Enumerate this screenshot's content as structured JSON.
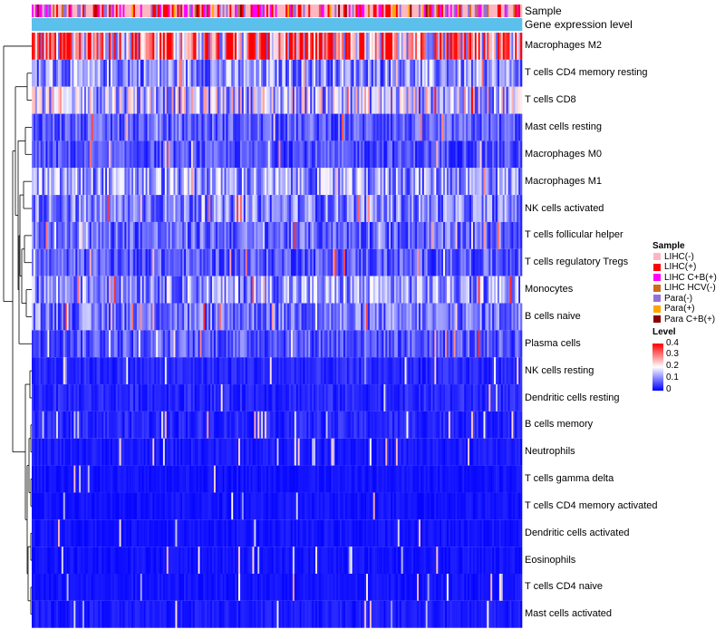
{
  "chart_data": {
    "type": "heatmap",
    "title": "",
    "column_count": 280,
    "rows": [
      "Macrophages M2",
      "T cells CD4 memory resting",
      "T cells CD8",
      "Mast cells resting",
      "Macrophages M0",
      "Macrophages M1",
      "NK cells activated",
      "T cells follicular helper",
      "T cells regulatory  Tregs",
      "Monocytes",
      "B cells naive",
      "Plasma cells",
      "NK cells resting",
      "Dendritic cells resting",
      "B cells memory",
      "Neutrophils",
      "T cells gamma delta",
      "T cells CD4 memory activated",
      "Dendritic cells activated",
      "Eosinophils",
      "T cells CD4 naive",
      "Mast cells activated"
    ],
    "row_mean_level": [
      0.3,
      0.11,
      0.16,
      0.07,
      0.06,
      0.12,
      0.1,
      0.08,
      0.07,
      0.12,
      0.09,
      0.07,
      0.03,
      0.03,
      0.03,
      0.02,
      0.015,
      0.015,
      0.015,
      0.015,
      0.015,
      0.02
    ],
    "annotation_tracks": [
      {
        "name": "Sample"
      },
      {
        "name": "Gene expression level"
      }
    ],
    "gene_expression_color": "#5bc0eb",
    "color_scale": {
      "min": 0,
      "max": 0.4,
      "low": "#0000ff",
      "mid": "#ffffff",
      "high": "#ff0000"
    }
  },
  "legend": {
    "sample_title": "Sample",
    "sample_items": [
      {
        "label": "LIHC(-)",
        "color": "#ffb6c1"
      },
      {
        "label": "LIHC(+)",
        "color": "#ff0000"
      },
      {
        "label": "LIHC C+B(+)",
        "color": "#ff00ff"
      },
      {
        "label": "LIHC HCV(-)",
        "color": "#d2691e"
      },
      {
        "label": "Para(-)",
        "color": "#9370db"
      },
      {
        "label": "Para(+)",
        "color": "#ffa500"
      },
      {
        "label": "Para C+B(+)",
        "color": "#8b0000"
      }
    ],
    "level_title": "Level",
    "level_ticks": [
      "0.4",
      "0.3",
      "0.2",
      "0.1",
      "0"
    ]
  }
}
